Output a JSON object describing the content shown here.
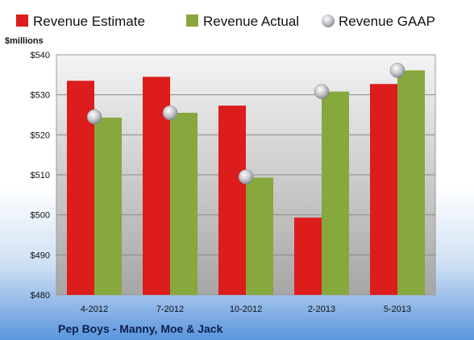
{
  "chart_data": {
    "type": "bar",
    "title": "",
    "xlabel": "",
    "ylabel": "$millions",
    "company": "Pep Boys - Manny, Moe & Jack",
    "categories": [
      "4-2012",
      "7-2012",
      "10-2012",
      "2-2013",
      "5-2013"
    ],
    "series": [
      {
        "name": "Revenue Estimate",
        "kind": "bar",
        "color": "#dd1c1c",
        "values": [
          533.5,
          534.5,
          527.3,
          499.3,
          532.7
        ]
      },
      {
        "name": "Revenue Actual",
        "kind": "bar",
        "color": "#86a83c",
        "values": [
          524.3,
          525.5,
          509.3,
          530.8,
          536.1
        ]
      },
      {
        "name": "Revenue GAAP",
        "kind": "marker",
        "color": "#c8c8d0",
        "values": [
          524.5,
          525.5,
          509.5,
          530.8,
          536.1
        ]
      }
    ],
    "ylim": [
      480,
      540
    ],
    "yticks": [
      480,
      490,
      500,
      510,
      520,
      530,
      540
    ],
    "ytick_labels": [
      "$480",
      "$490",
      "$500",
      "$510",
      "$520",
      "$530",
      "$540"
    ],
    "grid": true,
    "legend_position": "top"
  }
}
